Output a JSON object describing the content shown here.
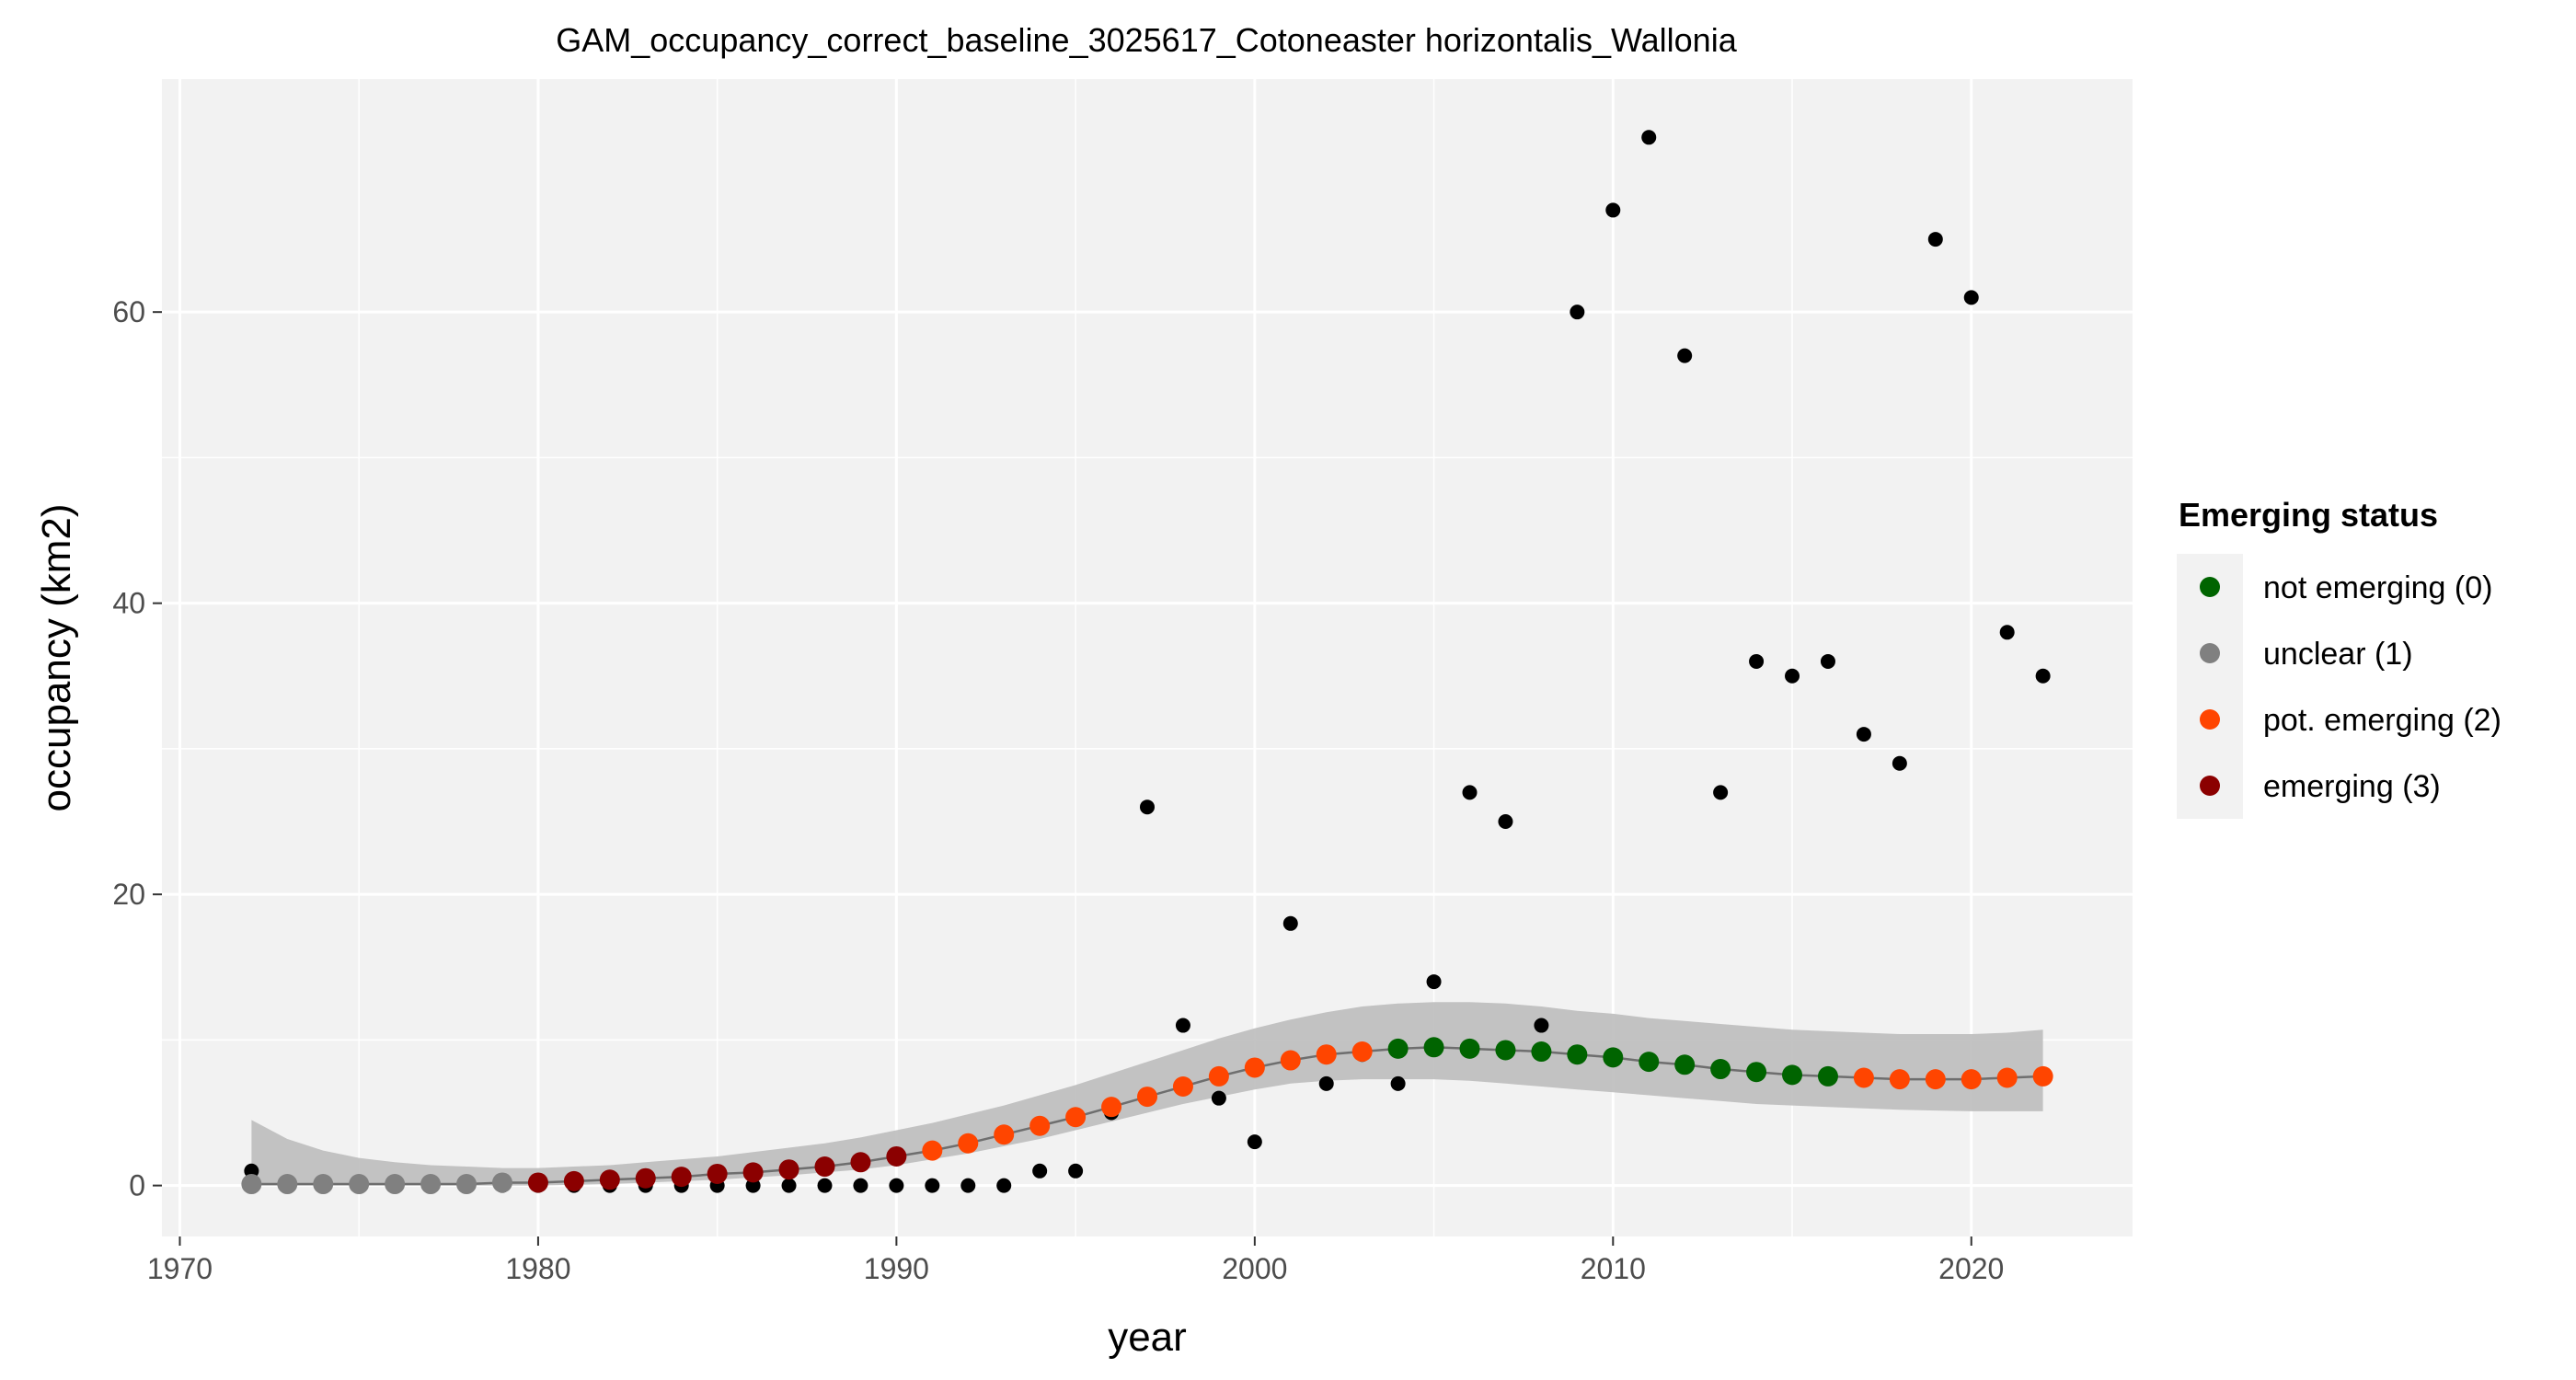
{
  "chart_data": {
    "type": "scatter",
    "title": "GAM_occupancy_correct_baseline_3025617_Cotoneaster horizontalis_Wallonia",
    "xlabel": "year",
    "ylabel": "occupancy (km2)",
    "xlim": [
      1969.5,
      2024.5
    ],
    "ylim": [
      -3.5,
      76
    ],
    "x_ticks": [
      1970,
      1980,
      1990,
      2000,
      2010,
      2020
    ],
    "y_ticks": [
      0,
      20,
      40,
      60
    ],
    "grid": true,
    "legend": {
      "title": "Emerging status",
      "position": "right",
      "entries": [
        {
          "label": "not emerging (0)",
          "color": "#006400"
        },
        {
          "label": "unclear (1)",
          "color": "#808080"
        },
        {
          "label": "pot. emerging (2)",
          "color": "#FF4500"
        },
        {
          "label": "emerging (3)",
          "color": "#8B0000"
        }
      ]
    },
    "observed": {
      "color": "#000000",
      "x": [
        1972,
        1973,
        1974,
        1975,
        1976,
        1977,
        1978,
        1979,
        1980,
        1981,
        1982,
        1983,
        1984,
        1985,
        1986,
        1987,
        1988,
        1989,
        1990,
        1991,
        1992,
        1993,
        1994,
        1995,
        1996,
        1997,
        1998,
        1999,
        2000,
        2001,
        2002,
        2003,
        2004,
        2005,
        2006,
        2007,
        2008,
        2009,
        2010,
        2011,
        2012,
        2013,
        2014,
        2015,
        2016,
        2017,
        2018,
        2019,
        2020,
        2021,
        2022
      ],
      "y": [
        1,
        0,
        0,
        0,
        0,
        0,
        0,
        0,
        0,
        0,
        0,
        0,
        0,
        0,
        0,
        0,
        0,
        0,
        0,
        0,
        0,
        0,
        1,
        1,
        5,
        26,
        11,
        6,
        3,
        18,
        7,
        9,
        7,
        14,
        27,
        25,
        11,
        60,
        67,
        72,
        57,
        27,
        36,
        35,
        36,
        31,
        29,
        65,
        61,
        38,
        35
      ]
    },
    "fitted": {
      "x": [
        1972,
        1973,
        1974,
        1975,
        1976,
        1977,
        1978,
        1979,
        1980,
        1981,
        1982,
        1983,
        1984,
        1985,
        1986,
        1987,
        1988,
        1989,
        1990,
        1991,
        1992,
        1993,
        1994,
        1995,
        1996,
        1997,
        1998,
        1999,
        2000,
        2001,
        2002,
        2003,
        2004,
        2005,
        2006,
        2007,
        2008,
        2009,
        2010,
        2011,
        2012,
        2013,
        2014,
        2015,
        2016,
        2017,
        2018,
        2019,
        2020,
        2021,
        2022
      ],
      "y": [
        0.1,
        0.1,
        0.1,
        0.1,
        0.1,
        0.1,
        0.1,
        0.2,
        0.2,
        0.3,
        0.4,
        0.5,
        0.6,
        0.8,
        0.9,
        1.1,
        1.3,
        1.6,
        2.0,
        2.4,
        2.9,
        3.5,
        4.1,
        4.7,
        5.4,
        6.1,
        6.8,
        7.5,
        8.1,
        8.6,
        9.0,
        9.2,
        9.4,
        9.5,
        9.4,
        9.3,
        9.2,
        9.0,
        8.8,
        8.5,
        8.3,
        8.0,
        7.8,
        7.6,
        7.5,
        7.4,
        7.3,
        7.3,
        7.3,
        7.4,
        7.5
      ],
      "lower": [
        0,
        0,
        0,
        0,
        0,
        0,
        0,
        0,
        0,
        0.05,
        0.1,
        0.2,
        0.3,
        0.4,
        0.55,
        0.7,
        0.9,
        1.1,
        1.4,
        1.8,
        2.2,
        2.7,
        3.2,
        3.8,
        4.4,
        5.0,
        5.6,
        6.1,
        6.6,
        7.0,
        7.2,
        7.3,
        7.3,
        7.3,
        7.2,
        7.0,
        6.8,
        6.6,
        6.4,
        6.2,
        6.0,
        5.8,
        5.6,
        5.5,
        5.4,
        5.3,
        5.2,
        5.15,
        5.1,
        5.1,
        5.1
      ],
      "upper": [
        4.5,
        3.2,
        2.4,
        1.9,
        1.6,
        1.4,
        1.3,
        1.2,
        1.2,
        1.3,
        1.4,
        1.6,
        1.8,
        2.0,
        2.3,
        2.6,
        2.9,
        3.3,
        3.8,
        4.3,
        4.9,
        5.5,
        6.2,
        6.9,
        7.7,
        8.5,
        9.3,
        10.1,
        10.8,
        11.4,
        11.9,
        12.3,
        12.5,
        12.6,
        12.6,
        12.5,
        12.3,
        12.0,
        11.8,
        11.5,
        11.3,
        11.1,
        10.9,
        10.7,
        10.6,
        10.5,
        10.4,
        10.4,
        10.4,
        10.5,
        10.7
      ],
      "status": [
        1,
        1,
        1,
        1,
        1,
        1,
        1,
        1,
        3,
        3,
        3,
        3,
        3,
        3,
        3,
        3,
        3,
        3,
        3,
        2,
        2,
        2,
        2,
        2,
        2,
        2,
        2,
        2,
        2,
        2,
        2,
        2,
        0,
        0,
        0,
        0,
        0,
        0,
        0,
        0,
        0,
        0,
        0,
        0,
        0,
        2,
        2,
        2,
        2,
        2,
        2
      ]
    }
  }
}
